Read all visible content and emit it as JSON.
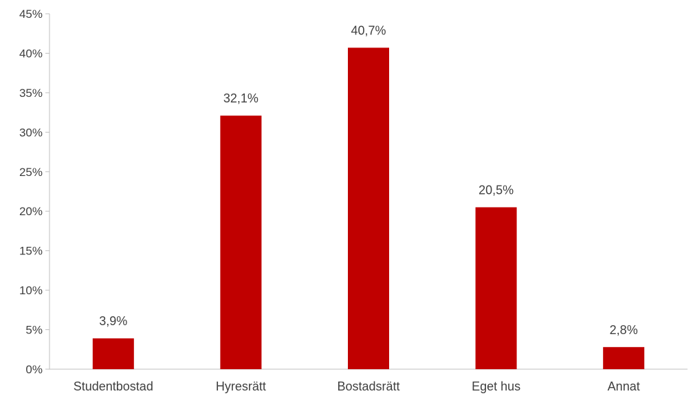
{
  "chart_data": {
    "type": "bar",
    "title": "",
    "xlabel": "",
    "ylabel": "",
    "categories": [
      "Studentbostad",
      "Hyresrätt",
      "Bostadsrätt",
      "Eget hus",
      "Annat"
    ],
    "values": [
      3.9,
      32.1,
      40.7,
      20.5,
      2.8
    ],
    "data_labels": [
      "3,9%",
      "32,1%",
      "40,7%",
      "20,5%",
      "2,8%"
    ],
    "ylim": [
      0,
      45
    ],
    "yticks": [
      0,
      5,
      10,
      15,
      20,
      25,
      30,
      35,
      40,
      45
    ],
    "ytick_labels": [
      "0%",
      "5%",
      "10%",
      "15%",
      "20%",
      "25%",
      "30%",
      "35%",
      "40%",
      "45%"
    ],
    "bar_color": "#c00000",
    "grid": false,
    "legend": "none"
  }
}
